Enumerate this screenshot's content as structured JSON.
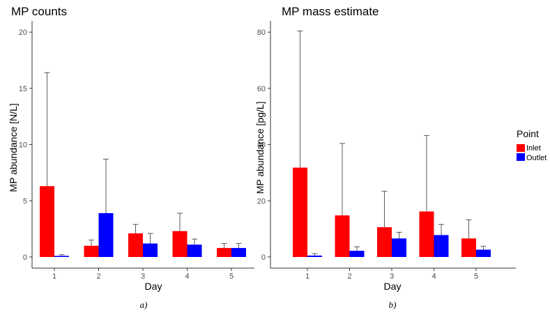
{
  "colors": {
    "inlet": "#ff0000",
    "outlet": "#0000ff",
    "axis": "#333333",
    "errorbar": "#333333"
  },
  "legend": {
    "title": "Point",
    "items": [
      {
        "label": "Inlet",
        "color": "#ff0000"
      },
      {
        "label": "Outlet",
        "color": "#0000ff"
      }
    ]
  },
  "chart_data": [
    {
      "type": "bar",
      "title": "MP counts",
      "xlabel": "Day",
      "ylabel": "MP abundance [N/L]",
      "sublabel": "a)",
      "categories": [
        "1",
        "2",
        "3",
        "4",
        "5"
      ],
      "ylim": [
        0,
        21
      ],
      "yticks": [
        0,
        5,
        10,
        15,
        20
      ],
      "series": [
        {
          "name": "Inlet",
          "values": [
            6.3,
            1.0,
            2.1,
            2.3,
            0.8
          ],
          "errors": [
            16.4,
            1.5,
            2.9,
            3.9,
            1.2
          ]
        },
        {
          "name": "Outlet",
          "values": [
            0.1,
            3.9,
            1.2,
            1.1,
            0.8
          ],
          "errors": [
            0.2,
            8.7,
            2.1,
            1.6,
            1.2
          ]
        }
      ]
    },
    {
      "type": "bar",
      "title": "MP mass estimate",
      "xlabel": "Day",
      "ylabel": "MP abundance [pg/L]",
      "sublabel": "b)",
      "categories": [
        "1",
        "2",
        "3",
        "4",
        "5"
      ],
      "ylim": [
        0,
        84
      ],
      "yticks": [
        0,
        20,
        40,
        60,
        80
      ],
      "series": [
        {
          "name": "Inlet",
          "values": [
            31.8,
            14.8,
            10.6,
            16.2,
            6.6
          ],
          "errors": [
            80.4,
            40.4,
            23.4,
            43.2,
            13.2
          ]
        },
        {
          "name": "Outlet",
          "values": [
            0.5,
            2.2,
            6.6,
            7.8,
            2.6
          ],
          "errors": [
            1.2,
            3.6,
            8.8,
            11.6,
            3.8
          ]
        }
      ]
    }
  ]
}
